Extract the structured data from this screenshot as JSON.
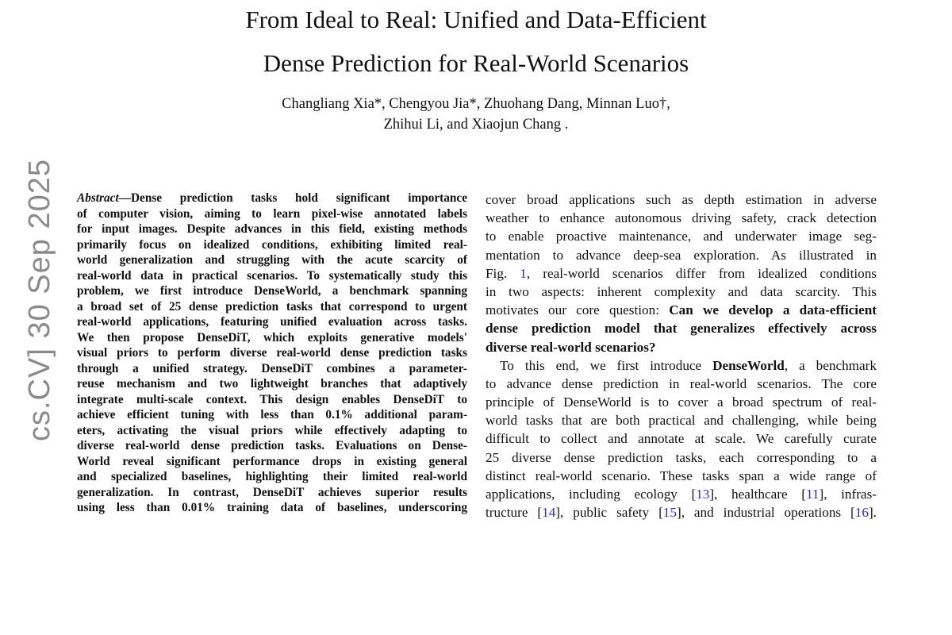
{
  "title": {
    "line1": "From Ideal to Real: Unified and Data-Efficient",
    "line2": "Dense Prediction for Real-World Scenarios"
  },
  "authors": {
    "line1": "Changliang Xia*, Chengyou Jia*, Zhuohang Dang, Minnan Luo†,",
    "line2": "Zhihui Li, and Xiaojun Chang      ."
  },
  "arxiv_stamp": "cs.CV]   30 Sep 2025",
  "abstract_lines": [
    [
      {
        "t": "Abstract",
        "s": "i"
      },
      "—Dense prediction tasks hold significant importance"
    ],
    [
      "of computer vision, aiming to learn pixel-wise annotated labels"
    ],
    [
      "for input images. Despite advances in this field, existing methods"
    ],
    [
      "primarily focus on idealized conditions, exhibiting limited real-"
    ],
    [
      "world generalization and struggling with the acute scarcity of"
    ],
    [
      "real-world data in practical scenarios. To systematically study this"
    ],
    [
      "problem, we first introduce DenseWorld, a benchmark spanning"
    ],
    [
      "a broad set of 25 dense prediction tasks that correspond to urgent"
    ],
    [
      "real-world applications, featuring unified evaluation across tasks."
    ],
    [
      "We then propose DenseDiT, which exploits generative models'"
    ],
    [
      "visual priors to perform diverse real-world dense prediction tasks"
    ],
    [
      "through a unified strategy. DenseDiT combines a parameter-"
    ],
    [
      "reuse mechanism and two lightweight branches that adaptively"
    ],
    [
      "integrate multi-scale context. This design enables DenseDiT to"
    ],
    [
      "achieve efficient tuning with less than 0.1% additional param-"
    ],
    [
      "eters, activating the visual priors while effectively adapting to"
    ],
    [
      "diverse real-world dense prediction tasks. Evaluations on Dense-"
    ],
    [
      "World reveal significant performance drops in existing general"
    ],
    [
      "and specialized baselines, highlighting their limited real-world"
    ],
    [
      "generalization. In contrast, DenseDiT achieves superior results"
    ],
    [
      "using less than 0.01% training data of baselines, underscoring"
    ]
  ],
  "body_lines": [
    [
      "cover broad applications such as depth estimation in adverse"
    ],
    [
      "weather to enhance autonomous driving safety, crack detection"
    ],
    [
      "to enable proactive maintenance, and underwater image seg-"
    ],
    [
      "mentation to advance deep-sea exploration. As illustrated in"
    ],
    [
      "Fig. ",
      {
        "t": "1",
        "s": "link"
      },
      ", real-world scenarios differ from idealized conditions"
    ],
    [
      "in two aspects: inherent complexity and data scarcity. This"
    ],
    [
      "motivates our core question: ",
      {
        "t": "Can we develop a data-efficient",
        "s": "b"
      }
    ],
    [
      {
        "t": "dense prediction model that generalizes effectively across",
        "s": "b"
      }
    ],
    [
      {
        "t": "diverse real-world scenarios?",
        "s": "b"
      }
    ],
    [
      "To this end, we first introduce ",
      {
        "t": "DenseWorld",
        "s": "b"
      },
      ", a benchmark"
    ],
    [
      "to advance dense prediction in real-world scenarios. The core"
    ],
    [
      "principle of DenseWorld is to cover a broad spectrum of real-"
    ],
    [
      "world tasks that are both practical and challenging, while being"
    ],
    [
      "difficult to collect and annotate at scale. We carefully curate"
    ],
    [
      "25 diverse dense prediction tasks, each corresponding to a"
    ],
    [
      "distinct real-world scenario. These tasks span a wide range of"
    ],
    [
      "applications, including ecology [",
      {
        "t": "13",
        "s": "link"
      },
      "], healthcare [",
      {
        "t": "11",
        "s": "link"
      },
      "], infras-"
    ],
    [
      "tructure [",
      {
        "t": "14",
        "s": "link"
      },
      "], public safety [",
      {
        "t": "15",
        "s": "link"
      },
      "], and industrial operations [",
      {
        "t": "16",
        "s": "link"
      },
      "]."
    ]
  ]
}
